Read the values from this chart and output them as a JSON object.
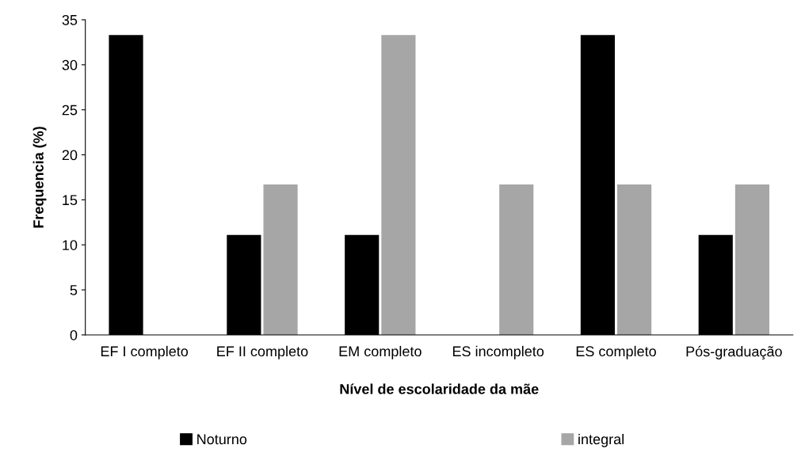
{
  "chart_data": {
    "type": "bar",
    "xlabel": "Nível de escolaridade da mãe",
    "ylabel": "Frequencia (%)",
    "categories": [
      "EF I completo",
      "EF II completo",
      "EM completo",
      "ES incompleto",
      "ES completo",
      "Pós-graduação"
    ],
    "series": [
      {
        "name": "Noturno",
        "color": "#000000",
        "values": [
          33.3,
          11.1,
          11.1,
          0,
          33.3,
          11.1
        ]
      },
      {
        "name": "integral",
        "color": "#a6a6a6",
        "values": [
          0,
          16.7,
          33.3,
          16.7,
          16.7,
          16.7
        ]
      }
    ],
    "ylim": [
      0,
      35
    ],
    "yticks": [
      0,
      5,
      10,
      15,
      20,
      25,
      30,
      35
    ],
    "grid": false,
    "legend": "bottom"
  }
}
